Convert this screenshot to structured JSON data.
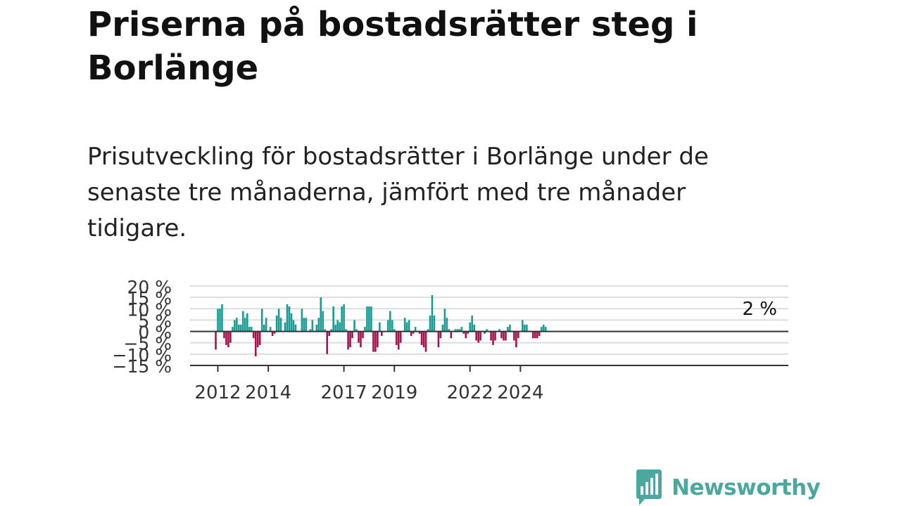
{
  "title": "Priserna på bostadsrätter steg i Borlänge",
  "subtitle": "Prisutveckling för bostadsrätter i Borlänge under de senaste tre månaderna, jämfört med tre månader tidigare.",
  "brand": "Newsworthy",
  "colors": {
    "positive": "#1a9c95",
    "negative": "#a5134f",
    "brand": "#4aa8a0"
  },
  "chart_data": {
    "type": "bar",
    "title": "",
    "xlabel": "",
    "ylabel": "",
    "ylim": [
      -15,
      20
    ],
    "yticks": [
      -15,
      -10,
      -5,
      0,
      5,
      10,
      15,
      20
    ],
    "ytick_labels": [
      "−15 %",
      "−10 %",
      "−5 %",
      "0 %",
      "5 %",
      "10 %",
      "15 %",
      "20 %"
    ],
    "xticks": [
      {
        "label": "2012",
        "index": 1
      },
      {
        "label": "2014",
        "index": 25
      },
      {
        "label": "2017",
        "index": 61
      },
      {
        "label": "2019",
        "index": 85
      },
      {
        "label": "2022",
        "index": 121
      },
      {
        "label": "2024",
        "index": 145
      }
    ],
    "period": "monthly, Jan 2012 – Feb 2025 (first bar Dec 2011)",
    "values": [
      -8,
      10,
      10,
      12,
      -3,
      -6,
      -7,
      -5,
      2,
      5,
      6,
      3,
      3,
      9,
      6,
      8,
      2,
      2,
      -3,
      -11,
      -7,
      -6,
      10,
      3,
      6,
      0,
      2,
      -2,
      -1,
      7,
      10,
      6,
      0,
      4,
      12,
      11,
      8,
      5,
      3,
      0,
      0,
      10,
      6,
      6,
      0,
      1,
      5,
      0,
      3,
      6,
      15,
      9,
      1,
      -10,
      -2,
      1,
      11,
      3,
      5,
      4,
      11,
      12,
      1,
      -8,
      -7,
      -3,
      5,
      1,
      -5,
      -7,
      -3,
      2,
      11,
      11,
      11,
      -9,
      -9,
      -7,
      4,
      -2,
      0,
      0,
      5,
      9,
      5,
      1,
      -6,
      -8,
      -5,
      0,
      6,
      4,
      5,
      -2,
      -1,
      2,
      0,
      -1,
      -6,
      -7,
      -9,
      1,
      7,
      16,
      7,
      0,
      -7,
      -3,
      3,
      10,
      6,
      1,
      -3,
      0,
      1,
      1,
      1,
      2,
      -1,
      -3,
      -1,
      4,
      7,
      3,
      -4,
      -5,
      -4,
      0,
      -1,
      1,
      0,
      -4,
      -6,
      -4,
      0,
      1,
      -3,
      -4,
      -4,
      2,
      3,
      0,
      -4,
      -7,
      -3,
      0,
      5,
      3,
      3,
      0,
      0,
      -3,
      -3,
      -3,
      -2,
      2,
      3,
      2
    ],
    "last_value_label": "2 %"
  }
}
